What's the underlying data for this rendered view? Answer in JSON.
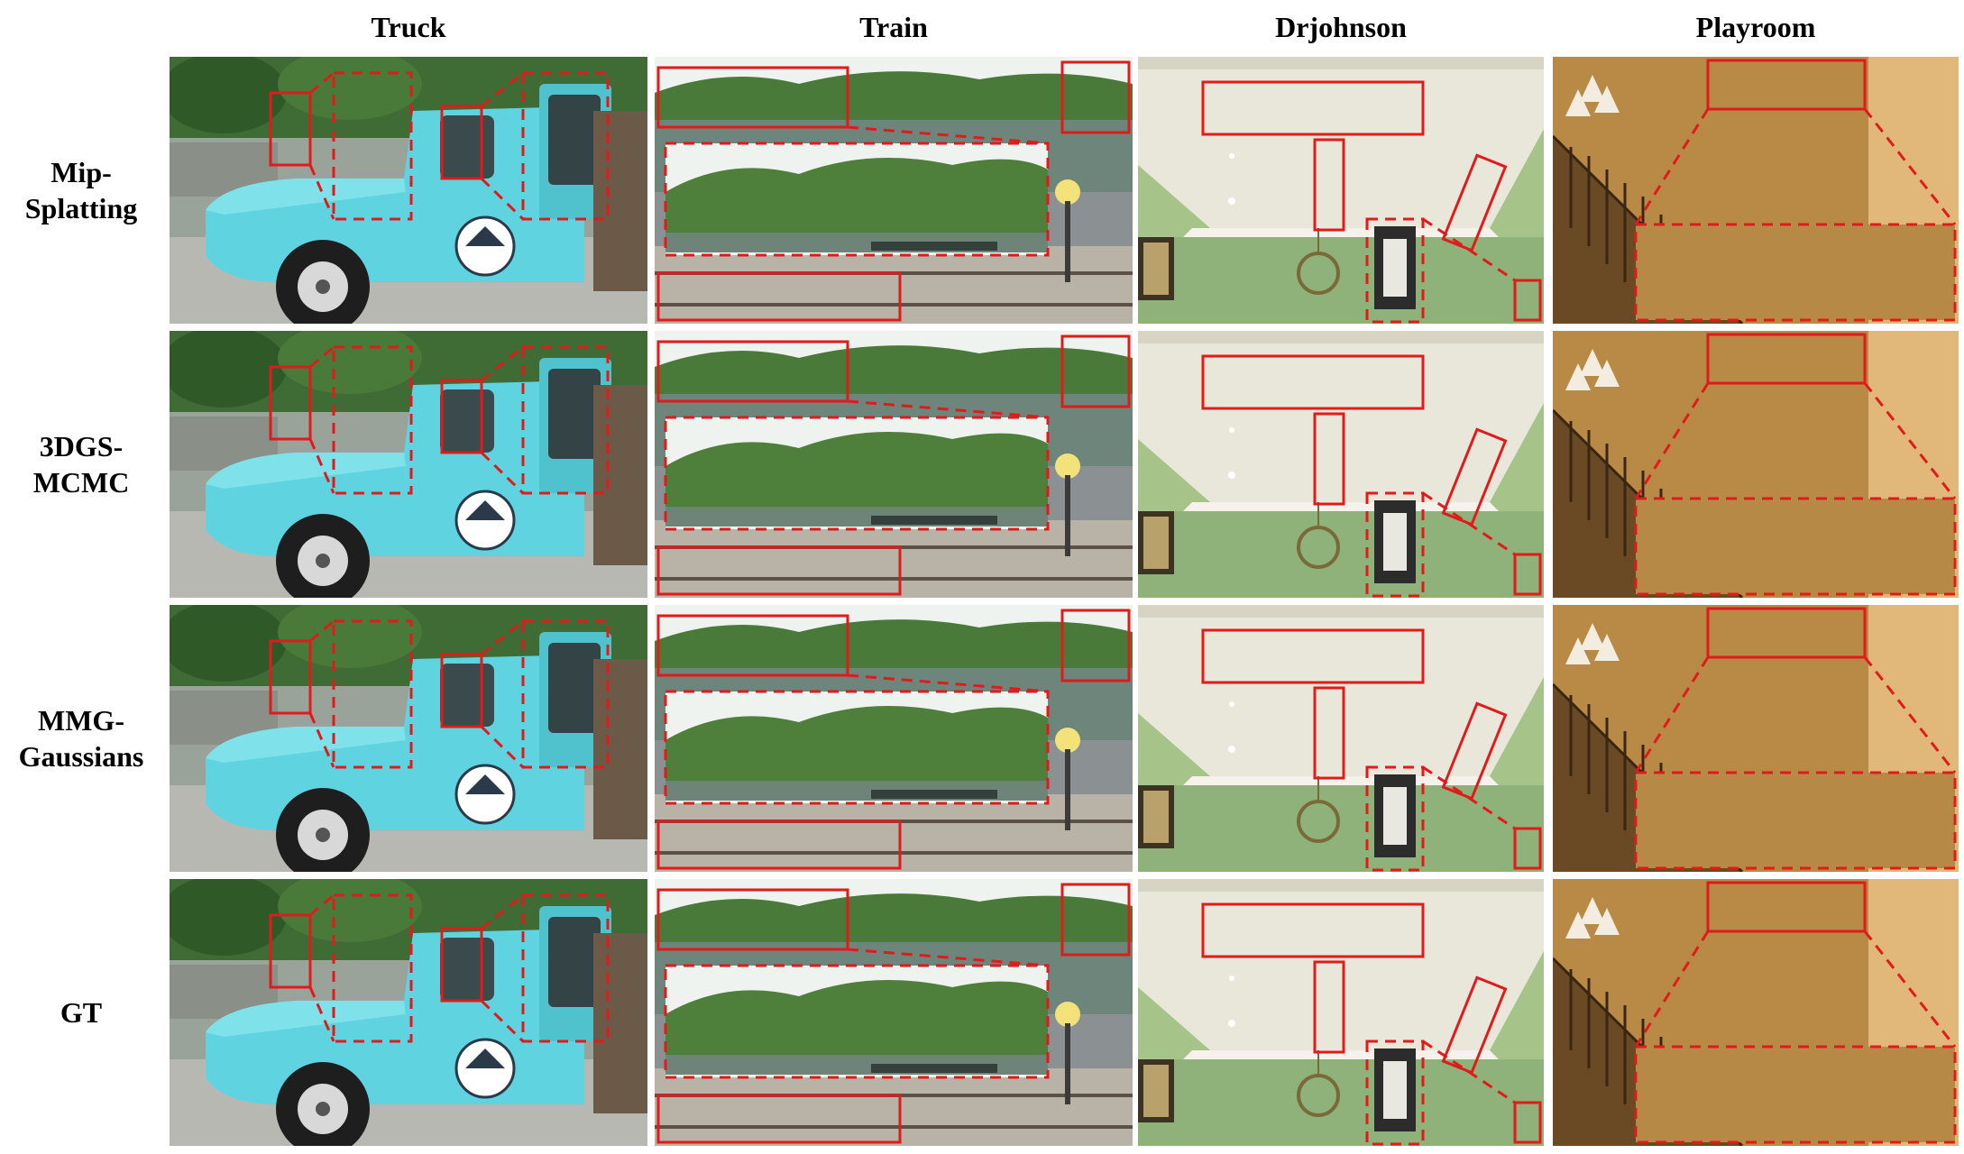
{
  "figure": {
    "columns": [
      "Truck",
      "Train",
      "Drjohnson",
      "Playroom"
    ],
    "rows": [
      "Mip-\nSplatting",
      "3DGS-\nMCMC",
      "MMG-\nGaussians",
      "GT"
    ],
    "colors": {
      "zoom_box": "#e01b1b",
      "truck_body": "#5fd3df",
      "sky": "#eef3ef",
      "foliage": "#3c6b2c",
      "wall_green": "#a6c48a",
      "ceiling": "#e9e7d9",
      "playroom_wall": "#c99a52"
    },
    "scene_icons": [
      "truck-scene",
      "train-scene",
      "drjohnson-scene",
      "playroom-scene"
    ]
  }
}
